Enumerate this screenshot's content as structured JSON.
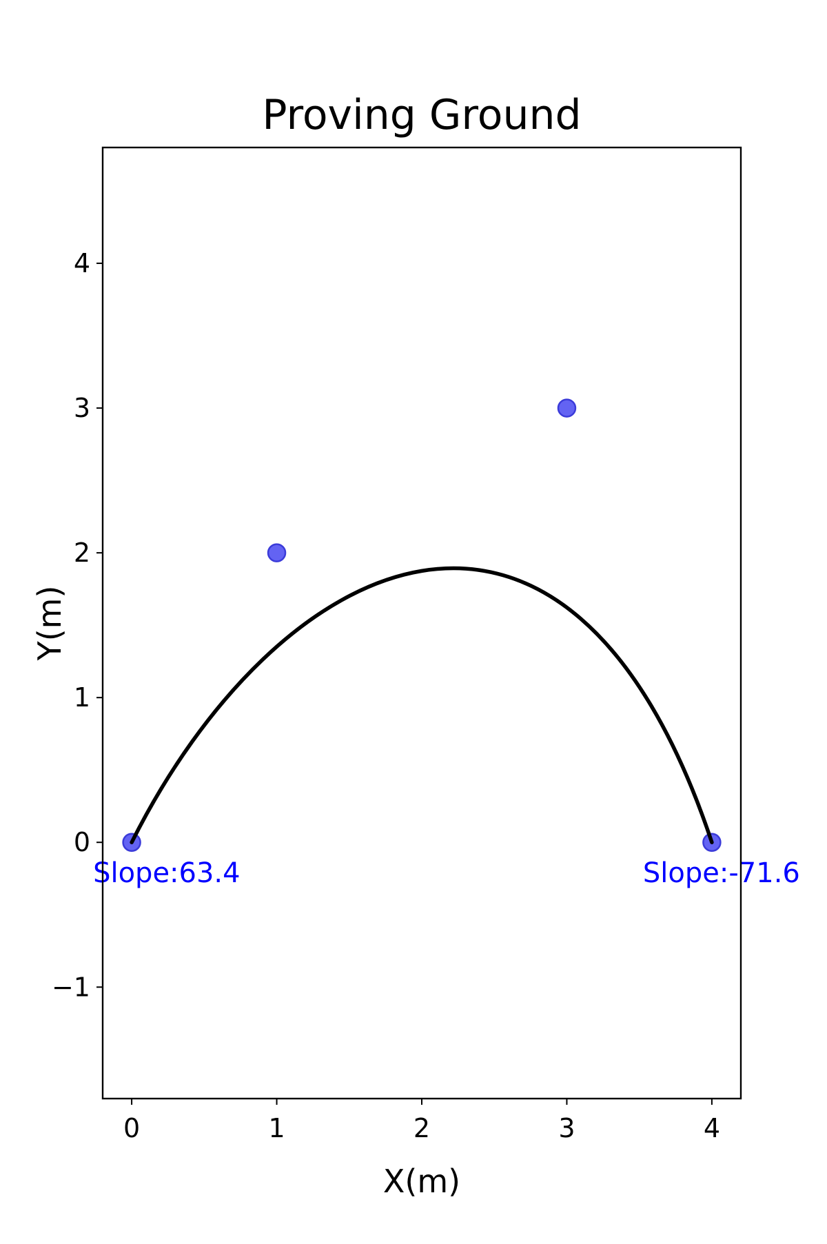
{
  "colors": {
    "point_fill": "#5b5bf2",
    "point_edge": "#3b3bd9",
    "curve": "#000000",
    "annotation": "#0000ff",
    "axes": "#000000"
  },
  "chart_data": {
    "type": "line",
    "title": "Proving Ground",
    "xlabel": "X(m)",
    "ylabel": "Y(m)",
    "xlim": [
      -0.2,
      4.2
    ],
    "ylim": [
      -1.77,
      4.8
    ],
    "xticks": [
      0,
      1,
      2,
      3,
      4
    ],
    "yticks": [
      -1,
      0,
      1,
      2,
      3,
      4
    ],
    "xtick_labels": [
      "0",
      "1",
      "2",
      "3",
      "4"
    ],
    "ytick_labels": [
      "−1",
      "0",
      "1",
      "2",
      "3",
      "4"
    ],
    "grid": false,
    "control_points": [
      {
        "x": 0,
        "y": 0
      },
      {
        "x": 1,
        "y": 2
      },
      {
        "x": 3,
        "y": 3
      },
      {
        "x": 4,
        "y": 0
      }
    ],
    "curve": {
      "kind": "cubic-bezier",
      "control_points_ref": "control_points"
    },
    "annotations": [
      {
        "text": "Slope:63.4",
        "x": 0,
        "y": 0
      },
      {
        "text": "Slope:-71.6",
        "x": 4,
        "y": 0
      }
    ]
  }
}
